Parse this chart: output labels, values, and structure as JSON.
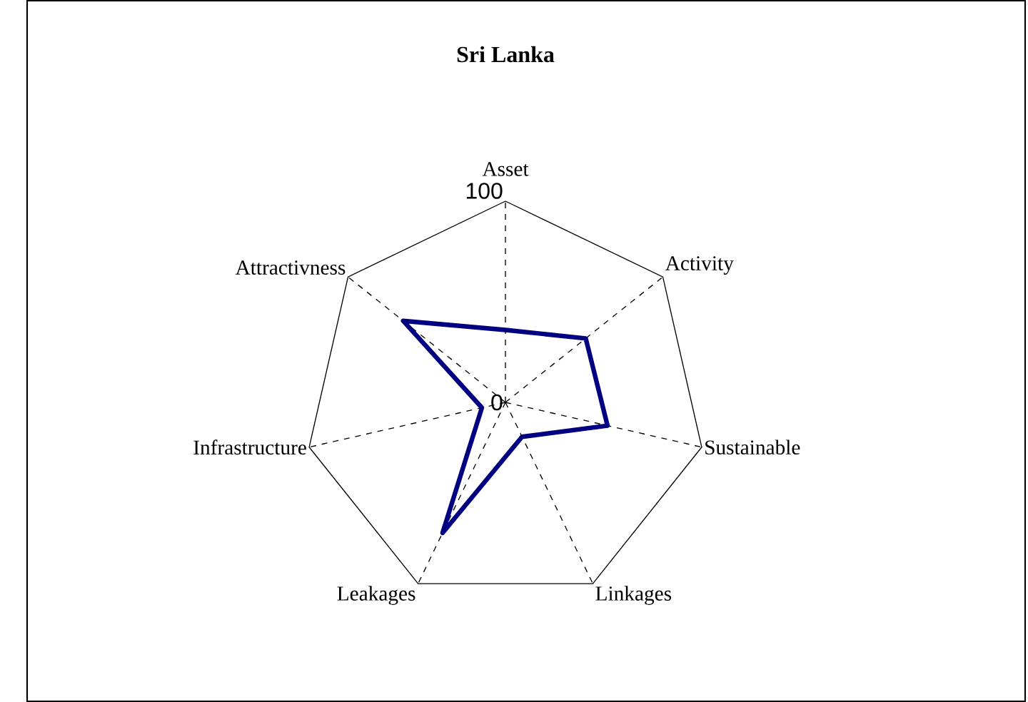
{
  "chart_data": {
    "type": "radar",
    "title": "Sri Lanka",
    "categories": [
      "Asset",
      "Activity",
      "Sustainable",
      "Linkages",
      "Leakages",
      "Infrastructure",
      "Attractivness"
    ],
    "series": [
      {
        "color": "#000080",
        "values": [
          36,
          51,
          52,
          19,
          72,
          12,
          65
        ]
      }
    ],
    "ylim": [
      0,
      100
    ],
    "yticks": [
      0,
      100
    ],
    "grid": true
  }
}
